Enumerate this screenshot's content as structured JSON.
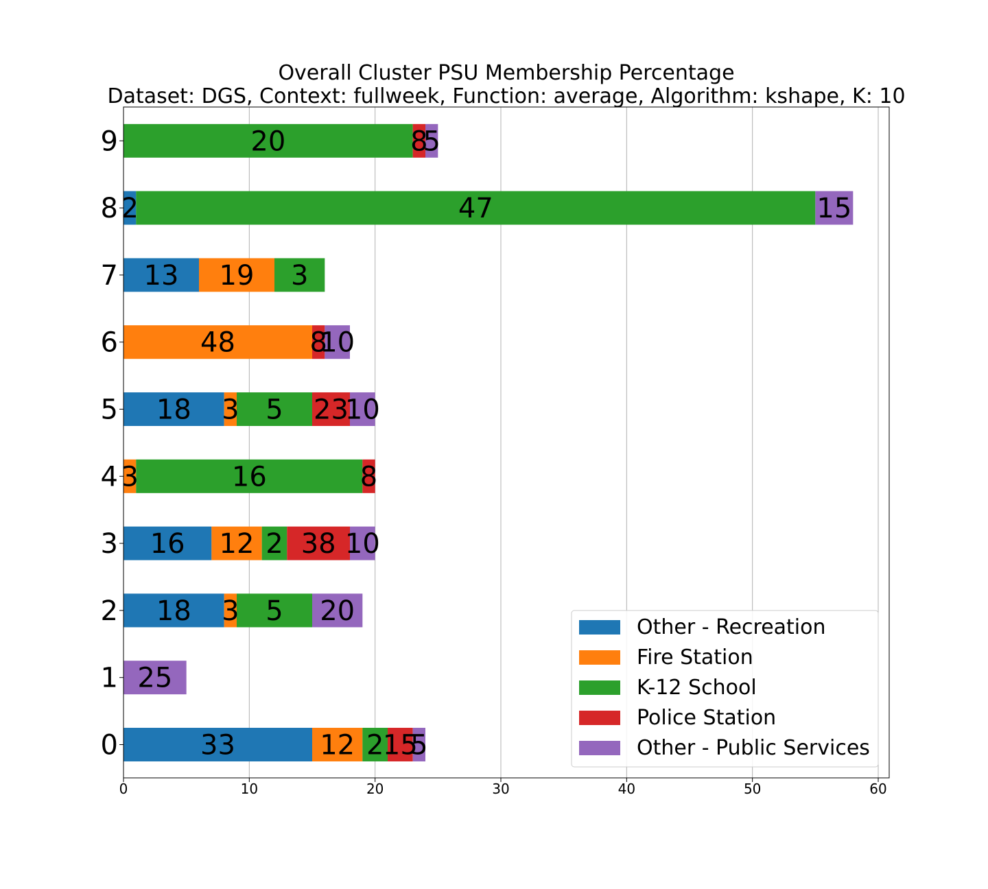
{
  "chart_data": {
    "type": "bar",
    "orientation": "horizontal",
    "stacked": true,
    "title": "Overall Cluster  PSU Membership Percentage",
    "subtitle": "Dataset: DGS, Context: fullweek, Function: average, Algorithm: kshape, K: 10",
    "xlabel": "",
    "ylabel": "",
    "xlim": [
      0,
      61
    ],
    "xticks": [
      "0",
      "10",
      "20",
      "30",
      "40",
      "50",
      "60"
    ],
    "categories": [
      "0",
      "1",
      "2",
      "3",
      "4",
      "5",
      "6",
      "7",
      "8",
      "9"
    ],
    "grid": "vertical",
    "legend_position": "lower-right",
    "series": [
      {
        "name": "Other - Recreation",
        "color": "#1f77b4",
        "values": [
          15,
          0,
          8,
          7,
          0,
          8,
          0,
          6,
          1,
          0
        ],
        "labels": [
          "33",
          "",
          "18",
          "16",
          "",
          "18",
          "",
          "13",
          "2",
          ""
        ]
      },
      {
        "name": "Fire Station",
        "color": "#ff7f0e",
        "values": [
          4,
          0,
          1,
          4,
          1,
          1,
          15,
          6,
          0,
          0
        ],
        "labels": [
          "12",
          "",
          "3",
          "12",
          "3",
          "3",
          "48",
          "19",
          "",
          ""
        ]
      },
      {
        "name": "K-12 School",
        "color": "#2ca02c",
        "values": [
          2,
          0,
          6,
          2,
          18,
          6,
          0,
          4,
          54,
          23
        ],
        "labels": [
          "2",
          "",
          "5",
          "2",
          "16",
          "5",
          "",
          "3",
          "47",
          "20"
        ]
      },
      {
        "name": "Police Station",
        "color": "#d62728",
        "values": [
          2,
          0,
          0,
          5,
          1,
          3,
          1,
          0,
          0,
          1
        ],
        "labels": [
          "15",
          "",
          "",
          "38",
          "8",
          "23",
          "8",
          "",
          "",
          "8"
        ]
      },
      {
        "name": "Other - Public Services",
        "color": "#9467bd",
        "values": [
          1,
          5,
          4,
          2,
          0,
          2,
          2,
          0,
          3,
          1
        ],
        "labels": [
          "5",
          "25",
          "20",
          "10",
          "",
          "10",
          "10",
          "",
          "15",
          "5"
        ]
      }
    ]
  }
}
